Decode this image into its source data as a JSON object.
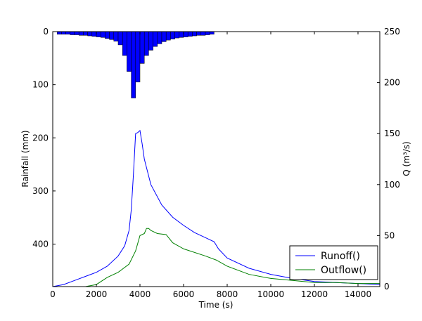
{
  "chart_data": {
    "type": "hyetograph-hydrograph",
    "xlabel": "Time (s)",
    "ylabel": "Rainfall (mm)",
    "y2label": "Q (m³/s)",
    "xlim": [
      0,
      15000
    ],
    "xticks": [
      0,
      2000,
      4000,
      6000,
      8000,
      10000,
      12000,
      14000
    ],
    "ylim": [
      0,
      480
    ],
    "y_inverted": true,
    "yticks": [
      0,
      100,
      200,
      300,
      400
    ],
    "y2lim": [
      0,
      250
    ],
    "y2ticks": [
      0,
      50,
      100,
      150,
      200,
      250
    ],
    "rainfall": {
      "color": "#0000ff",
      "bins": [
        200,
        400,
        600,
        800,
        1000,
        1200,
        1400,
        1600,
        1800,
        2000,
        2200,
        2400,
        2600,
        2800,
        3000,
        3200,
        3400,
        3600,
        3800,
        4000,
        4200,
        4400,
        4600,
        4800,
        5000,
        5200,
        5400,
        5600,
        5800,
        6000,
        6200,
        6400,
        6600,
        6800,
        7000,
        7200,
        7400
      ],
      "values": [
        5,
        5,
        5,
        6,
        6,
        7,
        7,
        8,
        9,
        10,
        11,
        13,
        15,
        18,
        25,
        45,
        75,
        125,
        95,
        60,
        45,
        35,
        28,
        23,
        19,
        16,
        14,
        12,
        11,
        10,
        9,
        8,
        7,
        7,
        6,
        5
      ]
    },
    "series": [
      {
        "name": "Runoff()",
        "color": "#0000ff",
        "axis": "y2",
        "x": [
          0,
          500,
          1000,
          1500,
          2000,
          2500,
          3000,
          3300,
          3500,
          3600,
          3700,
          3800,
          3900,
          4000,
          4100,
          4200,
          4500,
          5000,
          5500,
          6000,
          6500,
          7000,
          7400,
          7600,
          8000,
          9000,
          10000,
          11000,
          12000,
          13000,
          14000,
          15000
        ],
        "values": [
          0,
          2,
          6,
          10,
          14,
          20,
          30,
          40,
          55,
          75,
          110,
          150,
          151,
          153,
          140,
          125,
          100,
          80,
          68,
          60,
          53,
          48,
          44,
          37,
          28,
          18,
          12,
          8,
          5,
          4,
          3,
          2
        ]
      },
      {
        "name": "Outflow()",
        "color": "#008000",
        "axis": "y2",
        "x": [
          0,
          1500,
          2000,
          2500,
          3000,
          3500,
          3800,
          4000,
          4200,
          4300,
          4400,
          4500,
          4800,
          5200,
          5500,
          6000,
          7000,
          7500,
          8000,
          9000,
          10000,
          11000,
          12000,
          13000,
          14000,
          15000
        ],
        "values": [
          0,
          0,
          2,
          9,
          14,
          22,
          35,
          50,
          52,
          57,
          57,
          55,
          52,
          51,
          43,
          37,
          30,
          26,
          20,
          12,
          8,
          6,
          4,
          4,
          3,
          3
        ]
      }
    ],
    "legend": "lower right"
  }
}
